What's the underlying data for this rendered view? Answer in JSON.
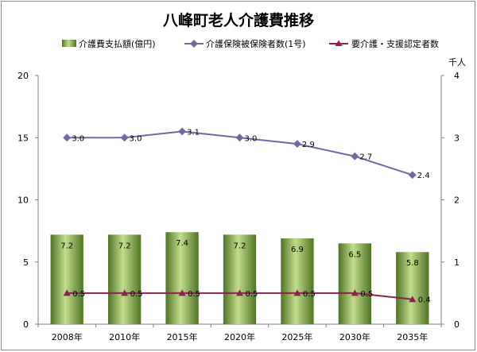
{
  "chart_data": {
    "type": "bar",
    "title": "八峰町老人介護費推移",
    "categories": [
      "2008年",
      "2010年",
      "2015年",
      "2020年",
      "2025年",
      "2030年",
      "2035年"
    ],
    "series": [
      {
        "name": "介護費支払額(億円)",
        "type": "bar",
        "axis": "left",
        "values": [
          7.2,
          7.2,
          7.4,
          7.2,
          6.9,
          6.5,
          5.8
        ],
        "labels": [
          "7.2",
          "7.2",
          "7.4",
          "7.2",
          "6.9",
          "6.5",
          "5.8"
        ]
      },
      {
        "name": "介護保険被保険者数(1号)",
        "type": "line",
        "axis": "right",
        "values": [
          3.0,
          3.0,
          3.1,
          3.0,
          2.9,
          2.7,
          2.4
        ],
        "labels": [
          "3.0",
          "3.0",
          "3.1",
          "3.0",
          "2.9",
          "2.7",
          "2.4"
        ]
      },
      {
        "name": "要介護・支援認定者数",
        "type": "line",
        "axis": "right",
        "values": [
          0.5,
          0.5,
          0.5,
          0.5,
          0.5,
          0.5,
          0.4
        ],
        "labels": [
          "0.5",
          "0.5",
          "0.5",
          "0.5",
          "0.5",
          "0.5",
          "0.4"
        ]
      }
    ],
    "y_left": {
      "ylim": [
        0,
        20
      ],
      "ticks": [
        "0",
        "5",
        "10",
        "15",
        "20"
      ]
    },
    "y_right": {
      "ylim": [
        0,
        4
      ],
      "ticks": [
        "0",
        "1",
        "2",
        "3",
        "4"
      ],
      "unit": "千人"
    },
    "legend": "top",
    "grid": false,
    "colors": {
      "bar": "#7aa23c",
      "bar_light": "#c3dc8d",
      "bar_dark": "#4f7424",
      "insured": "#6b6ba8",
      "certified": "#8b2252"
    }
  }
}
